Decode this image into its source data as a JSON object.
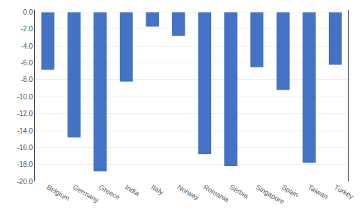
{
  "chart_data": {
    "type": "bar",
    "categories": [
      "Belgium",
      "Germany",
      "Greece",
      "India",
      "Italy",
      "Norway",
      "Romania",
      "Serbia",
      "Singapore",
      "Spain",
      "Taiwan",
      "Turkey"
    ],
    "values": [
      -6.8,
      -14.8,
      -18.8,
      -8.2,
      -1.7,
      -2.8,
      -16.8,
      -18.2,
      -6.5,
      -9.2,
      -17.8,
      -6.2
    ],
    "color": "#4472C4",
    "ylim": [
      -20.0,
      0.3
    ],
    "yticks": [
      {
        "value": 0.0,
        "label": "0.0"
      },
      {
        "value": -2.0,
        "label": "-2.0"
      },
      {
        "value": -4.0,
        "label": "-4.0"
      },
      {
        "value": -6.0,
        "label": "-6.0"
      },
      {
        "value": -8.0,
        "label": "-8.0"
      },
      {
        "value": -10.0,
        "label": "-10.0"
      },
      {
        "value": -12.0,
        "label": "-12.0"
      },
      {
        "value": -14.0,
        "label": "-14.0"
      },
      {
        "value": -16.0,
        "label": "-16.0"
      },
      {
        "value": -18.0,
        "label": "-18.0"
      },
      {
        "value": -20.0,
        "label": "-20.0"
      }
    ],
    "grid": true
  }
}
